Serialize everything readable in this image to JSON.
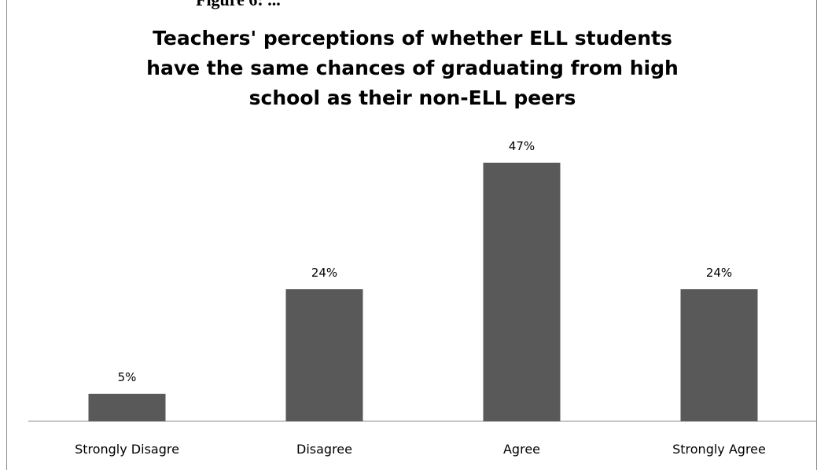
{
  "cut_header": "Figure 6: ...",
  "chart_data": {
    "type": "bar",
    "title_lines": [
      "Teachers' perceptions of whether ELL students",
      "have the same chances of graduating from high",
      "school as their non-ELL peers"
    ],
    "categories": [
      "Strongly Disagre",
      "Disagree",
      "Agree",
      "Strongly Agree"
    ],
    "values": [
      5,
      24,
      47,
      24
    ],
    "data_labels": [
      "5%",
      "24%",
      "47%",
      "24%"
    ],
    "xlabel": "",
    "ylabel": "",
    "ylim": [
      0,
      55
    ],
    "grid": false,
    "legend": "none",
    "bar_color": "#595959"
  }
}
